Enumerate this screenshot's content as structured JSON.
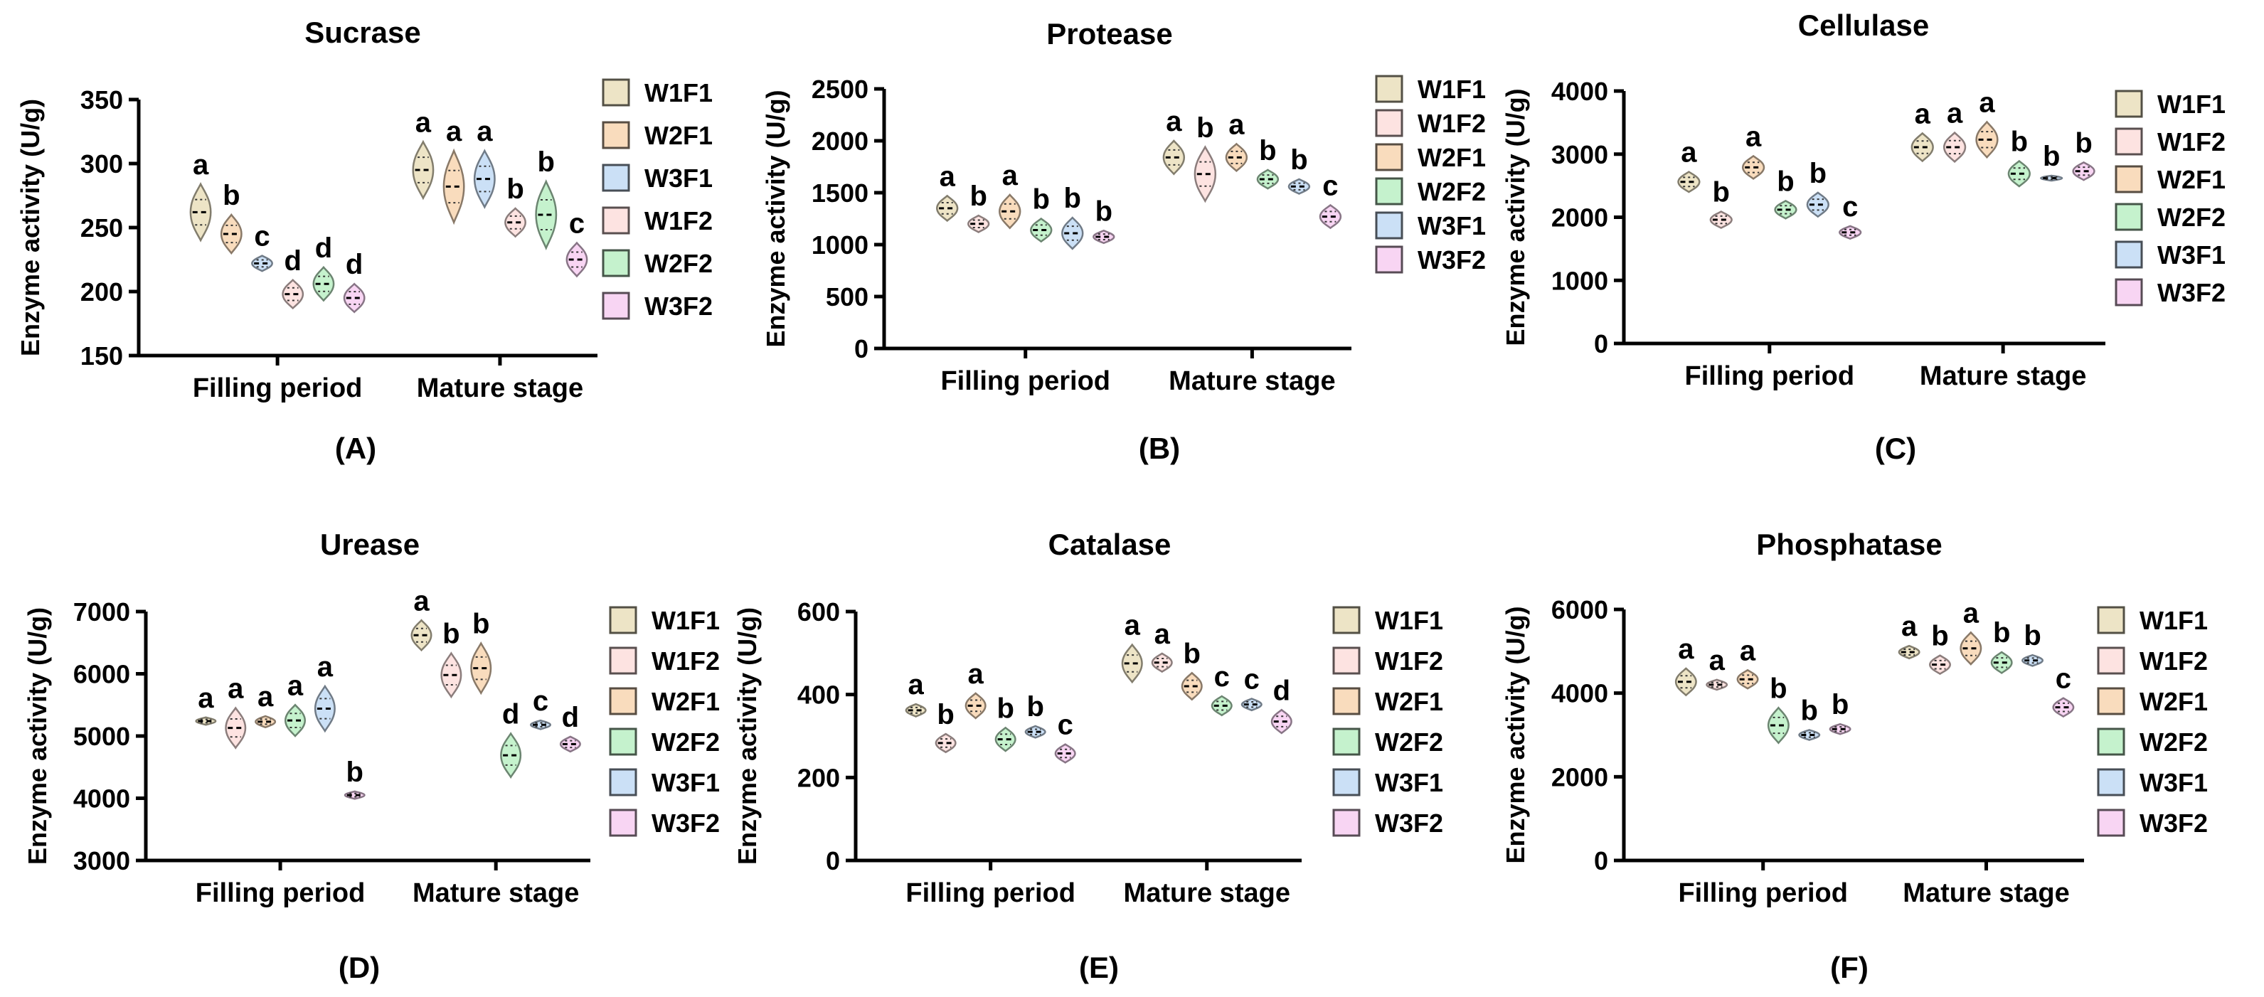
{
  "colors": {
    "W1F1": "#ede4c6",
    "W1F2": "#fde3e1",
    "W2F1": "#f9dcbd",
    "W2F2": "#c5f2cd",
    "W3F1": "#cbe0f6",
    "W3F2": "#f8d5f3"
  },
  "chart_data": [
    {
      "type": "violin",
      "panel": "(A)",
      "title": "Sucrase",
      "ylabel": "Enzyme activity (U/g)",
      "ylim": [
        150,
        350
      ],
      "yticks": [
        150,
        200,
        250,
        300,
        350
      ],
      "groups": [
        "Filling period",
        "Mature stage"
      ],
      "series_order": [
        "W1F1",
        "W2F1",
        "W3F1",
        "W1F2",
        "W2F2",
        "W3F2"
      ],
      "legend": [
        "W1F1",
        "W2F1",
        "W3F1",
        "W1F2",
        "W2F2",
        "W3F2"
      ],
      "values": [
        [
          262,
          245,
          222,
          198,
          206,
          195
        ],
        [
          295,
          282,
          288,
          254,
          260,
          225
        ]
      ],
      "spread": [
        [
          22,
          15,
          6,
          11,
          13,
          11
        ],
        [
          22,
          28,
          22,
          11,
          26,
          13
        ]
      ],
      "letters": [
        [
          "a",
          "b",
          "c",
          "d",
          "d",
          "d"
        ],
        [
          "a",
          "a",
          "a",
          "b",
          "b",
          "c"
        ]
      ]
    },
    {
      "type": "violin",
      "panel": "(B)",
      "title": "Protease",
      "ylabel": "Enzyme activity (U/g)",
      "ylim": [
        0,
        2500
      ],
      "yticks": [
        0,
        500,
        1000,
        1500,
        2000,
        2500
      ],
      "groups": [
        "Filling period",
        "Mature stage"
      ],
      "series_order": [
        "W1F1",
        "W1F2",
        "W2F1",
        "W2F2",
        "W3F1",
        "W3F2"
      ],
      "legend": [
        "W1F1",
        "W1F2",
        "W2F1",
        "W2F2",
        "W3F1",
        "W3F2"
      ],
      "values": [
        [
          1350,
          1200,
          1320,
          1140,
          1110,
          1075
        ],
        [
          1840,
          1680,
          1840,
          1630,
          1560,
          1270
        ]
      ],
      "spread": [
        [
          120,
          80,
          160,
          110,
          150,
          60
        ],
        [
          160,
          260,
          130,
          90,
          70,
          110
        ]
      ],
      "letters": [
        [
          "a",
          "b",
          "a",
          "b",
          "b",
          "b"
        ],
        [
          "a",
          "b",
          "a",
          "b",
          "b",
          "c"
        ]
      ]
    },
    {
      "type": "violin",
      "panel": "(C)",
      "title": "Cellulase",
      "ylabel": "Enzyme activity (U/g)",
      "ylim": [
        0,
        4000
      ],
      "yticks": [
        0,
        1000,
        2000,
        3000,
        4000
      ],
      "groups": [
        "Filling period",
        "Mature stage"
      ],
      "series_order": [
        "W1F1",
        "W1F2",
        "W2F1",
        "W2F2",
        "W3F1",
        "W3F2"
      ],
      "legend": [
        "W1F1",
        "W1F2",
        "W2F1",
        "W2F2",
        "W3F1",
        "W3F2"
      ],
      "values": [
        [
          2560,
          1960,
          2790,
          2120,
          2200,
          1760
        ],
        [
          3110,
          3110,
          3230,
          2690,
          2620,
          2730
        ]
      ],
      "spread": [
        [
          160,
          130,
          180,
          140,
          190,
          100
        ],
        [
          220,
          230,
          280,
          200,
          40,
          140
        ]
      ],
      "letters": [
        [
          "a",
          "b",
          "a",
          "b",
          "b",
          "c"
        ],
        [
          "a",
          "a",
          "a",
          "b",
          "b",
          "b"
        ]
      ]
    },
    {
      "type": "violin",
      "panel": "(D)",
      "title": "Urease",
      "ylabel": "Enzyme activity (U/g)",
      "ylim": [
        3000,
        7000
      ],
      "yticks": [
        3000,
        4000,
        5000,
        6000,
        7000
      ],
      "groups": [
        "Filling period",
        "Mature stage"
      ],
      "series_order": [
        "W1F1",
        "W1F2",
        "W2F1",
        "W2F2",
        "W3F1",
        "W3F2"
      ],
      "legend": [
        "W1F1",
        "W1F2",
        "W2F1",
        "W2F2",
        "W3F1",
        "W3F2"
      ],
      "values": [
        [
          5240,
          5130,
          5230,
          5250,
          5440,
          4050
        ],
        [
          6620,
          5980,
          6090,
          4690,
          5180,
          4870
        ]
      ],
      "spread": [
        [
          60,
          320,
          90,
          250,
          360,
          60
        ],
        [
          240,
          350,
          400,
          350,
          70,
          120
        ]
      ],
      "letters": [
        [
          "a",
          "a",
          "a",
          "a",
          "a",
          "b"
        ],
        [
          "a",
          "b",
          "b",
          "d",
          "c",
          "d"
        ]
      ]
    },
    {
      "type": "violin",
      "panel": "(E)",
      "title": "Catalase",
      "ylabel": "Enzyme activity (U/g)",
      "ylim": [
        0,
        600
      ],
      "yticks": [
        0,
        200,
        400,
        600
      ],
      "groups": [
        "Filling period",
        "Mature stage"
      ],
      "series_order": [
        "W1F1",
        "W1F2",
        "W2F1",
        "W2F2",
        "W3F1",
        "W3F2"
      ],
      "legend": [
        "W1F1",
        "W1F2",
        "W2F1",
        "W2F2",
        "W3F1",
        "W3F2"
      ],
      "values": [
        [
          362,
          283,
          373,
          292,
          310,
          258
        ],
        [
          475,
          477,
          420,
          373,
          376,
          335
        ]
      ],
      "spread": [
        [
          15,
          22,
          30,
          28,
          14,
          22
        ],
        [
          45,
          22,
          32,
          23,
          14,
          28
        ]
      ],
      "letters": [
        [
          "a",
          "b",
          "a",
          "b",
          "b",
          "c"
        ],
        [
          "a",
          "a",
          "b",
          "c",
          "c",
          "d"
        ]
      ]
    },
    {
      "type": "violin",
      "panel": "(F)",
      "title": "Phosphatase",
      "ylabel": "Enzyme activity (U/g)",
      "ylim": [
        0,
        6000
      ],
      "yticks": [
        0,
        2000,
        4000,
        6000
      ],
      "groups": [
        "Filling period",
        "Mature stage"
      ],
      "series_order": [
        "W1F1",
        "W1F2",
        "W2F1",
        "W2F2",
        "W3F1",
        "W3F2"
      ],
      "legend": [
        "W1F1",
        "W1F2",
        "W2F1",
        "W2F2",
        "W3F1",
        "W3F2"
      ],
      "values": [
        [
          4270,
          4200,
          4330,
          3230,
          3000,
          3140
        ],
        [
          4980,
          4680,
          5070,
          4730,
          4780,
          3660
        ]
      ],
      "spread": [
        [
          320,
          120,
          220,
          420,
          120,
          120
        ],
        [
          150,
          220,
          380,
          250,
          130,
          220
        ]
      ],
      "letters": [
        [
          "a",
          "a",
          "a",
          "b",
          "b",
          "b"
        ],
        [
          "a",
          "b",
          "a",
          "b",
          "b",
          "c"
        ]
      ]
    }
  ]
}
